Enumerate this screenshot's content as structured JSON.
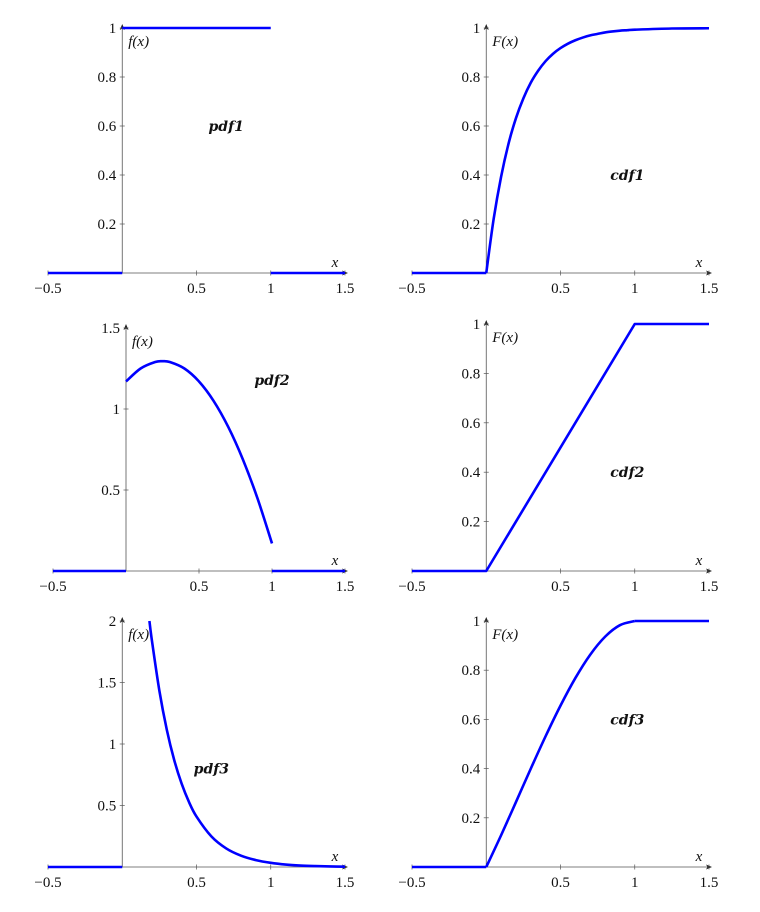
{
  "colors": {
    "curve": "#0000ff",
    "axis": "#555555"
  },
  "chart_data": [
    {
      "type": "line",
      "annotation": "pdf1",
      "xlabel": "x",
      "ylabel": "f(x)",
      "xlim": [
        -0.5,
        1.5
      ],
      "ylim": [
        0,
        1
      ],
      "xticks": [
        "−0.5",
        "0.5",
        "1",
        "1.5"
      ],
      "xtick_values": [
        -0.5,
        0.5,
        1,
        1.5
      ],
      "yticks": [
        "0.2",
        "0.4",
        "0.6",
        "0.8",
        "1"
      ],
      "ytick_values": [
        0.2,
        0.4,
        0.6,
        0.8,
        1
      ],
      "segments": [
        {
          "x": [
            -0.5,
            0
          ],
          "y": [
            0,
            0
          ]
        },
        {
          "x": [
            0,
            1
          ],
          "y": [
            1,
            1
          ]
        },
        {
          "x": [
            1,
            1.5
          ],
          "y": [
            0,
            0
          ]
        }
      ]
    },
    {
      "type": "line",
      "annotation": "cdf1",
      "xlabel": "x",
      "ylabel": "F(x)",
      "xlim": [
        -0.5,
        1.5
      ],
      "ylim": [
        0,
        1
      ],
      "xticks": [
        "−0.5",
        "0.5",
        "1",
        "1.5"
      ],
      "xtick_values": [
        -0.5,
        0.5,
        1,
        1.5
      ],
      "yticks": [
        "0.2",
        "0.4",
        "0.6",
        "0.8",
        "1"
      ],
      "ytick_values": [
        0.2,
        0.4,
        0.6,
        0.8,
        1
      ],
      "segments": [
        {
          "x": [
            -0.5,
            0
          ],
          "y": [
            0,
            0
          ]
        },
        {
          "x": [
            0,
            0.05,
            0.1,
            0.15,
            0.2,
            0.25,
            0.3,
            0.35,
            0.4,
            0.45,
            0.5,
            0.55,
            0.6,
            0.65,
            0.7,
            0.75,
            0.8,
            0.85,
            0.9,
            0.95,
            1.0,
            1.25,
            1.5
          ],
          "y": [
            0,
            0.221,
            0.393,
            0.528,
            0.632,
            0.713,
            0.777,
            0.826,
            0.865,
            0.895,
            0.918,
            0.936,
            0.95,
            0.961,
            0.97,
            0.976,
            0.982,
            0.986,
            0.989,
            0.991,
            0.993,
            0.998,
            0.999
          ]
        }
      ]
    },
    {
      "type": "line",
      "annotation": "pdf2",
      "xlabel": "x",
      "ylabel": "f(x)",
      "xlim": [
        -0.5,
        1.5
      ],
      "ylim": [
        0,
        1.5
      ],
      "xticks": [
        "−0.5",
        "0.5",
        "1",
        "1.5"
      ],
      "xtick_values": [
        -0.5,
        0.5,
        1,
        1.5
      ],
      "yticks": [
        "0.5",
        "1",
        "1.5"
      ],
      "ytick_values": [
        0.5,
        1,
        1.5
      ],
      "segments": [
        {
          "x": [
            -0.5,
            0
          ],
          "y": [
            0,
            0
          ]
        },
        {
          "x": [
            0,
            0.1,
            0.2,
            0.25,
            0.3,
            0.4,
            0.5,
            0.6,
            0.7,
            0.8,
            0.9,
            1.0
          ],
          "y": [
            1.17,
            1.25,
            1.29,
            1.295,
            1.29,
            1.25,
            1.17,
            1.05,
            0.89,
            0.69,
            0.45,
            0.17
          ]
        },
        {
          "x": [
            1,
            1.5
          ],
          "y": [
            0,
            0
          ]
        }
      ]
    },
    {
      "type": "line",
      "annotation": "cdf2",
      "xlabel": "x",
      "ylabel": "F(x)",
      "xlim": [
        -0.5,
        1.5
      ],
      "ylim": [
        0,
        1
      ],
      "xticks": [
        "−0.5",
        "0.5",
        "1",
        "1.5"
      ],
      "xtick_values": [
        -0.5,
        0.5,
        1,
        1.5
      ],
      "yticks": [
        "0.2",
        "0.4",
        "0.6",
        "0.8",
        "1"
      ],
      "ytick_values": [
        0.2,
        0.4,
        0.6,
        0.8,
        1
      ],
      "segments": [
        {
          "x": [
            -0.5,
            0,
            1,
            1.5
          ],
          "y": [
            0,
            0,
            1,
            1
          ]
        }
      ]
    },
    {
      "type": "line",
      "annotation": "pdf3",
      "xlabel": "x",
      "ylabel": "f(x)",
      "xlim": [
        -0.5,
        1.5
      ],
      "ylim": [
        0,
        2
      ],
      "xticks": [
        "−0.5",
        "0.5",
        "1",
        "1.5"
      ],
      "xtick_values": [
        -0.5,
        0.5,
        1,
        1.5
      ],
      "yticks": [
        "0.5",
        "1",
        "1.5",
        "2"
      ],
      "ytick_values": [
        0.5,
        1,
        1.5,
        2
      ],
      "segments": [
        {
          "x": [
            -0.5,
            0
          ],
          "y": [
            0,
            0
          ]
        },
        {
          "x": [
            0.183,
            0.2,
            0.25,
            0.3,
            0.35,
            0.4,
            0.45,
            0.5,
            0.6,
            0.7,
            0.8,
            0.9,
            1.0,
            1.1,
            1.2,
            1.3,
            1.4,
            1.5
          ],
          "y": [
            2.0,
            1.839,
            1.433,
            1.116,
            0.869,
            0.677,
            0.527,
            0.41,
            0.249,
            0.151,
            0.092,
            0.056,
            0.034,
            0.02,
            0.012,
            0.0075,
            0.0046,
            0.0028
          ]
        }
      ]
    },
    {
      "type": "line",
      "annotation": "cdf3",
      "xlabel": "x",
      "ylabel": "F(x)",
      "xlim": [
        -0.5,
        1.5
      ],
      "ylim": [
        0,
        1
      ],
      "xticks": [
        "−0.5",
        "0.5",
        "1",
        "1.5"
      ],
      "xtick_values": [
        -0.5,
        0.5,
        1,
        1.5
      ],
      "yticks": [
        "0.2",
        "0.4",
        "0.6",
        "0.8",
        "1"
      ],
      "ytick_values": [
        0.2,
        0.4,
        0.6,
        0.8,
        1
      ],
      "segments": [
        {
          "x": [
            -0.5,
            0
          ],
          "y": [
            0,
            0
          ]
        },
        {
          "x": [
            0,
            0.1,
            0.2,
            0.3,
            0.4,
            0.5,
            0.6,
            0.7,
            0.8,
            0.9,
            1.0
          ],
          "y": [
            0,
            0.129,
            0.264,
            0.4,
            0.532,
            0.656,
            0.768,
            0.863,
            0.936,
            0.983,
            1.0
          ]
        },
        {
          "x": [
            1,
            1.5
          ],
          "y": [
            1,
            1
          ]
        }
      ]
    }
  ]
}
